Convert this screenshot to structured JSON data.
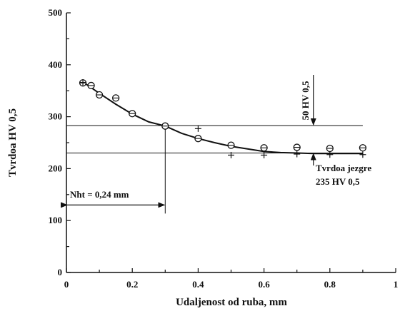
{
  "chart_data": {
    "type": "scatter",
    "title": "",
    "xlabel": "Udaljenost od ruba, mm",
    "ylabel": "Tvrdoa HV 0,5",
    "xlim": [
      0,
      1
    ],
    "ylim": [
      0,
      500
    ],
    "x_ticks": [
      "0",
      "0.2",
      "0.4",
      "0.6",
      "0.8",
      "1"
    ],
    "y_ticks": [
      "0",
      "100",
      "200",
      "300",
      "400",
      "500"
    ],
    "grid": false,
    "series": [
      {
        "marker": "circle",
        "points": [
          {
            "x": 0.05,
            "y": 365
          },
          {
            "x": 0.075,
            "y": 360
          },
          {
            "x": 0.1,
            "y": 342
          },
          {
            "x": 0.15,
            "y": 336
          },
          {
            "x": 0.2,
            "y": 306
          },
          {
            "x": 0.3,
            "y": 282
          },
          {
            "x": 0.4,
            "y": 258
          },
          {
            "x": 0.5,
            "y": 245
          },
          {
            "x": 0.6,
            "y": 240
          },
          {
            "x": 0.7,
            "y": 241
          },
          {
            "x": 0.8,
            "y": 239
          },
          {
            "x": 0.9,
            "y": 240
          }
        ]
      },
      {
        "marker": "plus",
        "points": [
          {
            "x": 0.05,
            "y": 366
          },
          {
            "x": 0.4,
            "y": 277
          },
          {
            "x": 0.5,
            "y": 226
          },
          {
            "x": 0.6,
            "y": 226
          },
          {
            "x": 0.7,
            "y": 228
          },
          {
            "x": 0.8,
            "y": 227
          },
          {
            "x": 0.9,
            "y": 227
          }
        ]
      }
    ],
    "fit_curve": [
      {
        "x": 0.05,
        "y": 367
      },
      {
        "x": 0.1,
        "y": 345
      },
      {
        "x": 0.15,
        "y": 324
      },
      {
        "x": 0.2,
        "y": 305
      },
      {
        "x": 0.25,
        "y": 290
      },
      {
        "x": 0.3,
        "y": 282
      },
      {
        "x": 0.35,
        "y": 268
      },
      {
        "x": 0.4,
        "y": 258
      },
      {
        "x": 0.45,
        "y": 250
      },
      {
        "x": 0.5,
        "y": 243
      },
      {
        "x": 0.55,
        "y": 238
      },
      {
        "x": 0.6,
        "y": 233
      },
      {
        "x": 0.65,
        "y": 231
      },
      {
        "x": 0.7,
        "y": 230
      },
      {
        "x": 0.75,
        "y": 229
      },
      {
        "x": 0.8,
        "y": 229
      },
      {
        "x": 0.9,
        "y": 229
      }
    ],
    "reference_lines": {
      "upper_y": 283,
      "lower_y": 230,
      "vertical_x": 0.3,
      "arrow_x": 0.75,
      "nht_arrow_y": 130
    },
    "annotations": {
      "nht": "Nht = 0,24 mm",
      "delta": "50 HV 0,5",
      "core_line1": "Tvrdoa jezgre",
      "core_line2": "235 HV 0,5"
    }
  }
}
